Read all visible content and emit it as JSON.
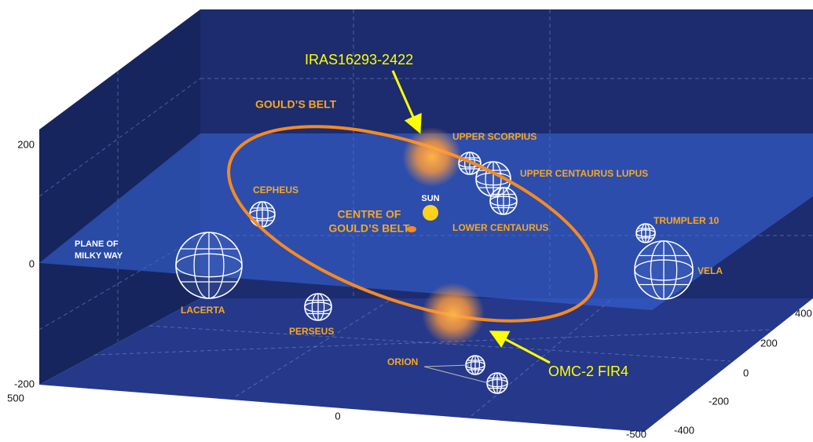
{
  "callouts": [
    "IRAS16293-2422",
    "OMC-2 FIR4"
  ],
  "belt_label": "GOULD’S BELT",
  "centre_label": [
    "CENTRE OF",
    "GOULD’S BELT"
  ],
  "plane_label": [
    "PLANE OF",
    "MILKY WAY"
  ],
  "sun_label": "SUN",
  "regions": [
    "UPPER SCORPIUS",
    "UPPER CENTAURUS LUPUS",
    "CEPHEUS",
    "LOWER CENTAURUS",
    "TRUMPLER 10",
    "VELA",
    "LACERTA",
    "PERSEUS",
    "ORION"
  ],
  "axes": {
    "vertical": [
      200,
      0,
      -200
    ],
    "front": [
      500,
      0,
      -500
    ],
    "depth": [
      400,
      200,
      0,
      -200,
      -400
    ]
  }
}
